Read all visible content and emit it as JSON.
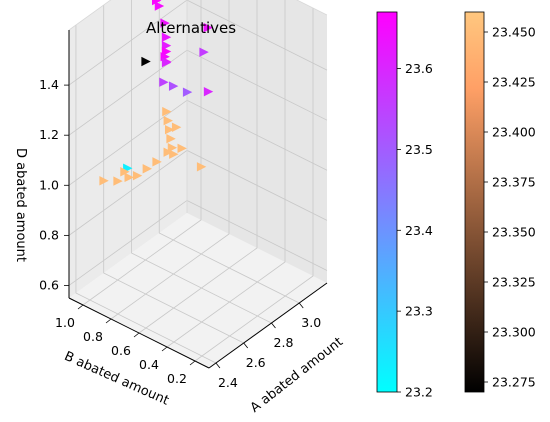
{
  "chart_data": {
    "type": "scatter",
    "projection": "3d",
    "title": "Alternatives",
    "xlabel": "A abated amount",
    "ylabel": "B abated amount",
    "zlabel": "D abated amount",
    "x_ticks": [
      "2.4",
      "2.6",
      "2.8",
      "3.0"
    ],
    "y_ticks": [
      "1.0",
      "0.8",
      "0.6",
      "0.4",
      "0.2"
    ],
    "z_ticks": [
      "0.6",
      "0.8",
      "1.0",
      "1.2",
      "1.4"
    ],
    "grid": true,
    "marker": "triangle-right",
    "series": [
      {
        "colormap": "cool",
        "color_range": [
          23.2,
          23.67
        ],
        "colorbar_ticks": [
          "23.2",
          "23.3",
          "23.4",
          "23.5",
          "23.6"
        ],
        "points": [
          {
            "x": 2.93,
            "y": 1.05,
            "z": 1.52,
            "c": 23.66
          },
          {
            "x": 2.95,
            "y": 1.05,
            "z": 1.49,
            "c": 23.65
          },
          {
            "x": 2.94,
            "y": 1.0,
            "z": 1.44,
            "c": 23.64
          },
          {
            "x": 2.9,
            "y": 0.95,
            "z": 1.38,
            "c": 23.62
          },
          {
            "x": 2.92,
            "y": 0.97,
            "z": 1.4,
            "c": 23.63
          },
          {
            "x": 2.88,
            "y": 0.93,
            "z": 1.37,
            "c": 23.66
          },
          {
            "x": 2.86,
            "y": 0.92,
            "z": 1.36,
            "c": 23.65
          },
          {
            "x": 2.85,
            "y": 0.9,
            "z": 1.35,
            "c": 23.64
          },
          {
            "x": 2.8,
            "y": 0.85,
            "z": 1.38,
            "c": 23.6
          },
          {
            "x": 2.75,
            "y": 0.82,
            "z": 1.33,
            "c": 23.55
          },
          {
            "x": 2.8,
            "y": 0.8,
            "z": 1.3,
            "c": 23.52
          },
          {
            "x": 2.85,
            "y": 0.75,
            "z": 1.27,
            "c": 23.5
          },
          {
            "x": 2.9,
            "y": 0.65,
            "z": 1.28,
            "c": 23.6
          },
          {
            "x": 3.1,
            "y": 0.85,
            "z": 1.4,
            "c": 23.64
          },
          {
            "x": 3.12,
            "y": 0.9,
            "z": 1.28,
            "c": 23.56
          },
          {
            "x": 2.52,
            "y": 0.85,
            "z": 1.07,
            "c": 23.23
          }
        ]
      },
      {
        "colormap": "copper",
        "color_range": [
          23.27,
          23.46
        ],
        "colorbar_ticks": [
          "23.275",
          "23.300",
          "23.325",
          "23.350",
          "23.375",
          "23.400",
          "23.425",
          "23.450"
        ],
        "points": [
          {
            "x": 2.45,
            "y": 0.65,
            "z": 1.58,
            "c": 23.27
          },
          {
            "x": 2.6,
            "y": 0.65,
            "z": 1.32,
            "c": 23.45
          },
          {
            "x": 2.61,
            "y": 0.65,
            "z": 1.28,
            "c": 23.45
          },
          {
            "x": 2.62,
            "y": 0.65,
            "z": 1.24,
            "c": 23.45
          },
          {
            "x": 2.63,
            "y": 0.65,
            "z": 1.2,
            "c": 23.45
          },
          {
            "x": 2.64,
            "y": 0.65,
            "z": 1.16,
            "c": 23.45
          },
          {
            "x": 2.65,
            "y": 0.65,
            "z": 1.13,
            "c": 23.45
          },
          {
            "x": 2.66,
            "y": 0.7,
            "z": 1.12,
            "c": 23.45
          },
          {
            "x": 2.6,
            "y": 0.72,
            "z": 1.1,
            "c": 23.45
          },
          {
            "x": 2.56,
            "y": 0.75,
            "z": 1.08,
            "c": 23.45
          },
          {
            "x": 2.52,
            "y": 0.78,
            "z": 1.06,
            "c": 23.45
          },
          {
            "x": 2.5,
            "y": 0.82,
            "z": 1.05,
            "c": 23.45
          },
          {
            "x": 2.46,
            "y": 0.86,
            "z": 1.04,
            "c": 23.45
          },
          {
            "x": 2.45,
            "y": 0.95,
            "z": 1.02,
            "c": 23.45
          },
          {
            "x": 2.55,
            "y": 0.9,
            "z": 1.03,
            "c": 23.45
          },
          {
            "x": 2.68,
            "y": 0.62,
            "z": 1.15,
            "c": 23.45
          },
          {
            "x": 2.64,
            "y": 0.62,
            "z": 1.25,
            "c": 23.45
          },
          {
            "x": 2.85,
            "y": 0.65,
            "z": 1.0,
            "c": 23.45
          }
        ]
      }
    ]
  }
}
